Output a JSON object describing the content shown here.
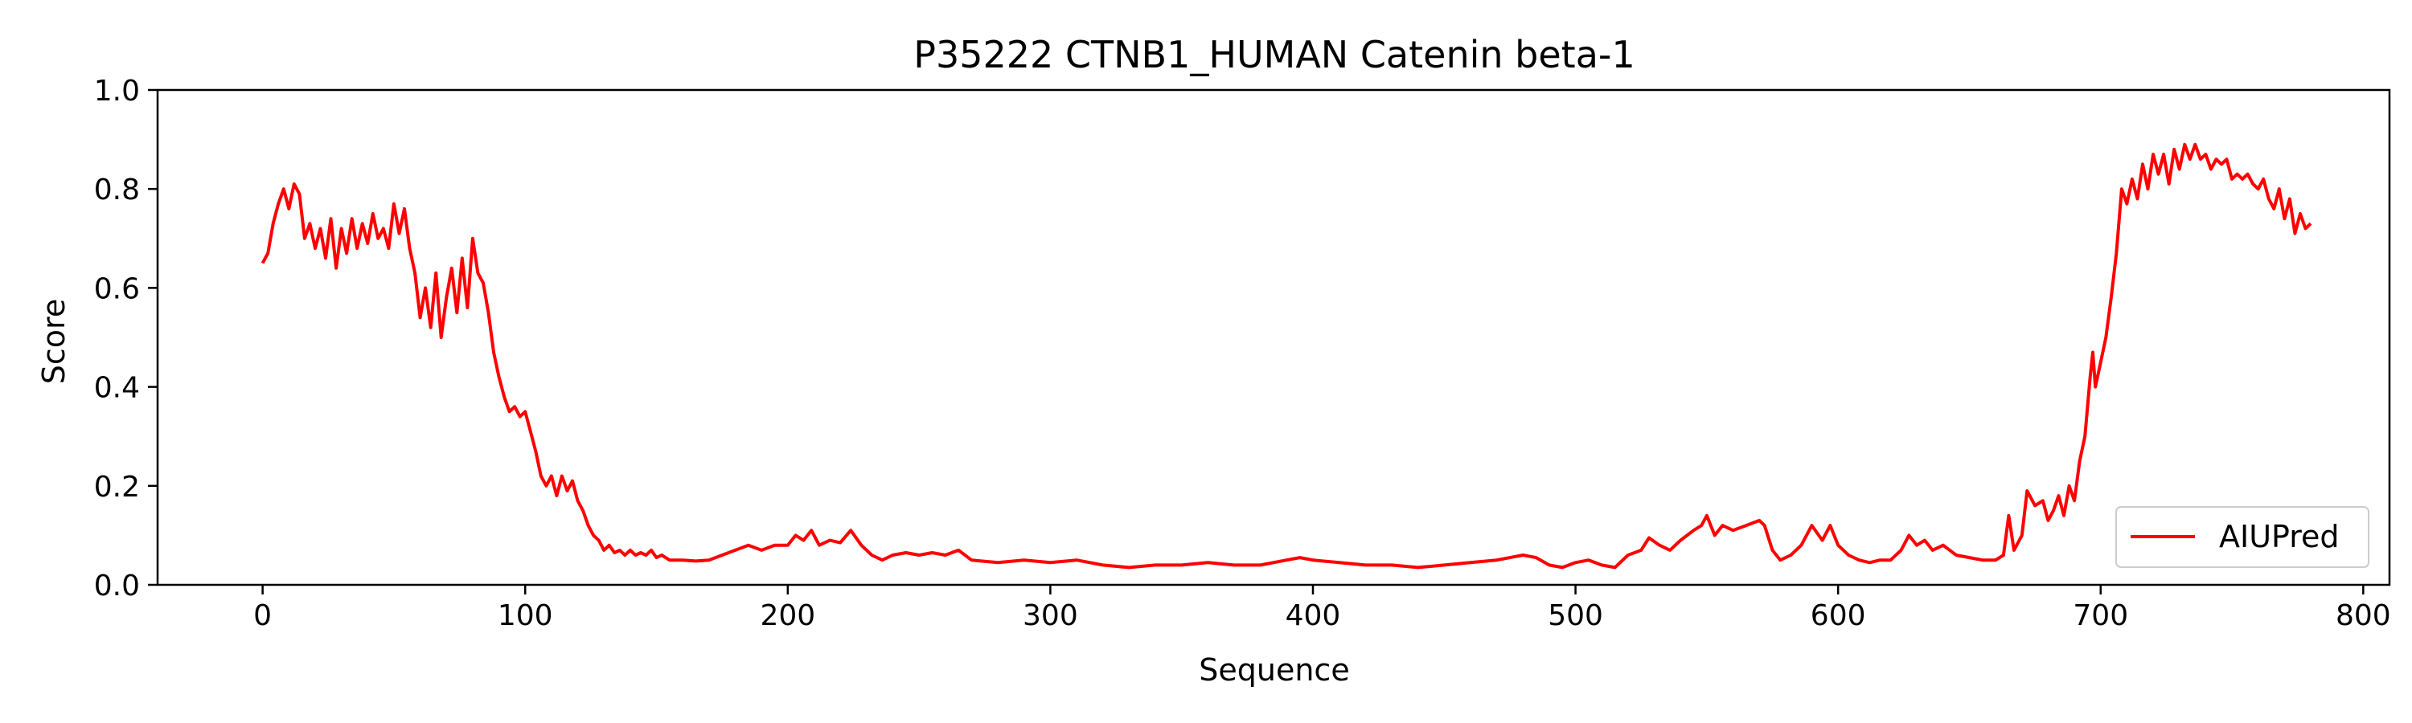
{
  "chart_data": {
    "type": "line",
    "title": "P35222 CTNB1_HUMAN Catenin beta-1",
    "xlabel": "Sequence",
    "ylabel": "Score",
    "xlim": [
      -40,
      810
    ],
    "ylim": [
      0.0,
      1.0
    ],
    "xticks": [
      0,
      100,
      200,
      300,
      400,
      500,
      600,
      700,
      800
    ],
    "yticks": [
      0.0,
      0.2,
      0.4,
      0.6,
      0.8,
      1.0
    ],
    "xtick_labels": [
      "0",
      "100",
      "200",
      "300",
      "400",
      "500",
      "600",
      "700",
      "800"
    ],
    "ytick_labels": [
      "0.0",
      "0.2",
      "0.4",
      "0.6",
      "0.8",
      "1.0"
    ],
    "grid": false,
    "legend_position": "lower-right",
    "series": [
      {
        "name": "AIUPred",
        "color": "#ff0000",
        "points": [
          [
            0,
            0.65
          ],
          [
            2,
            0.67
          ],
          [
            4,
            0.73
          ],
          [
            6,
            0.77
          ],
          [
            8,
            0.8
          ],
          [
            10,
            0.76
          ],
          [
            12,
            0.81
          ],
          [
            14,
            0.79
          ],
          [
            16,
            0.7
          ],
          [
            18,
            0.73
          ],
          [
            20,
            0.68
          ],
          [
            22,
            0.72
          ],
          [
            24,
            0.66
          ],
          [
            26,
            0.74
          ],
          [
            28,
            0.64
          ],
          [
            30,
            0.72
          ],
          [
            32,
            0.67
          ],
          [
            34,
            0.74
          ],
          [
            36,
            0.68
          ],
          [
            38,
            0.73
          ],
          [
            40,
            0.69
          ],
          [
            42,
            0.75
          ],
          [
            44,
            0.7
          ],
          [
            46,
            0.72
          ],
          [
            48,
            0.68
          ],
          [
            50,
            0.77
          ],
          [
            52,
            0.71
          ],
          [
            54,
            0.76
          ],
          [
            56,
            0.68
          ],
          [
            58,
            0.63
          ],
          [
            60,
            0.54
          ],
          [
            62,
            0.6
          ],
          [
            64,
            0.52
          ],
          [
            66,
            0.63
          ],
          [
            68,
            0.5
          ],
          [
            70,
            0.58
          ],
          [
            72,
            0.64
          ],
          [
            74,
            0.55
          ],
          [
            76,
            0.66
          ],
          [
            78,
            0.56
          ],
          [
            80,
            0.7
          ],
          [
            82,
            0.63
          ],
          [
            84,
            0.61
          ],
          [
            86,
            0.55
          ],
          [
            88,
            0.47
          ],
          [
            90,
            0.42
          ],
          [
            92,
            0.38
          ],
          [
            94,
            0.35
          ],
          [
            96,
            0.36
          ],
          [
            98,
            0.34
          ],
          [
            100,
            0.35
          ],
          [
            102,
            0.31
          ],
          [
            104,
            0.27
          ],
          [
            106,
            0.22
          ],
          [
            108,
            0.2
          ],
          [
            110,
            0.22
          ],
          [
            112,
            0.18
          ],
          [
            114,
            0.22
          ],
          [
            116,
            0.19
          ],
          [
            118,
            0.21
          ],
          [
            120,
            0.17
          ],
          [
            122,
            0.15
          ],
          [
            124,
            0.12
          ],
          [
            126,
            0.1
          ],
          [
            128,
            0.09
          ],
          [
            130,
            0.07
          ],
          [
            132,
            0.08
          ],
          [
            134,
            0.065
          ],
          [
            136,
            0.07
          ],
          [
            138,
            0.06
          ],
          [
            140,
            0.07
          ],
          [
            142,
            0.06
          ],
          [
            144,
            0.065
          ],
          [
            146,
            0.06
          ],
          [
            148,
            0.07
          ],
          [
            150,
            0.055
          ],
          [
            152,
            0.06
          ],
          [
            155,
            0.05
          ],
          [
            160,
            0.05
          ],
          [
            165,
            0.048
          ],
          [
            170,
            0.05
          ],
          [
            175,
            0.06
          ],
          [
            180,
            0.07
          ],
          [
            185,
            0.08
          ],
          [
            190,
            0.07
          ],
          [
            195,
            0.08
          ],
          [
            200,
            0.08
          ],
          [
            203,
            0.1
          ],
          [
            206,
            0.09
          ],
          [
            209,
            0.11
          ],
          [
            212,
            0.08
          ],
          [
            216,
            0.09
          ],
          [
            220,
            0.085
          ],
          [
            224,
            0.11
          ],
          [
            228,
            0.08
          ],
          [
            232,
            0.06
          ],
          [
            236,
            0.05
          ],
          [
            240,
            0.06
          ],
          [
            245,
            0.065
          ],
          [
            250,
            0.06
          ],
          [
            255,
            0.065
          ],
          [
            260,
            0.06
          ],
          [
            265,
            0.07
          ],
          [
            270,
            0.05
          ],
          [
            280,
            0.045
          ],
          [
            290,
            0.05
          ],
          [
            300,
            0.045
          ],
          [
            310,
            0.05
          ],
          [
            320,
            0.04
          ],
          [
            330,
            0.035
          ],
          [
            340,
            0.04
          ],
          [
            350,
            0.04
          ],
          [
            360,
            0.045
          ],
          [
            370,
            0.04
          ],
          [
            380,
            0.04
          ],
          [
            390,
            0.05
          ],
          [
            395,
            0.055
          ],
          [
            400,
            0.05
          ],
          [
            410,
            0.045
          ],
          [
            420,
            0.04
          ],
          [
            430,
            0.04
          ],
          [
            440,
            0.035
          ],
          [
            450,
            0.04
          ],
          [
            460,
            0.045
          ],
          [
            470,
            0.05
          ],
          [
            480,
            0.06
          ],
          [
            485,
            0.055
          ],
          [
            490,
            0.04
          ],
          [
            495,
            0.035
          ],
          [
            500,
            0.045
          ],
          [
            505,
            0.05
          ],
          [
            510,
            0.04
          ],
          [
            515,
            0.035
          ],
          [
            520,
            0.06
          ],
          [
            525,
            0.07
          ],
          [
            528,
            0.095
          ],
          [
            532,
            0.08
          ],
          [
            536,
            0.07
          ],
          [
            540,
            0.09
          ],
          [
            545,
            0.11
          ],
          [
            548,
            0.12
          ],
          [
            550,
            0.14
          ],
          [
            553,
            0.1
          ],
          [
            556,
            0.12
          ],
          [
            560,
            0.11
          ],
          [
            565,
            0.12
          ],
          [
            570,
            0.13
          ],
          [
            572,
            0.12
          ],
          [
            575,
            0.07
          ],
          [
            578,
            0.05
          ],
          [
            582,
            0.06
          ],
          [
            586,
            0.08
          ],
          [
            590,
            0.12
          ],
          [
            594,
            0.09
          ],
          [
            597,
            0.12
          ],
          [
            600,
            0.08
          ],
          [
            604,
            0.06
          ],
          [
            608,
            0.05
          ],
          [
            612,
            0.045
          ],
          [
            616,
            0.05
          ],
          [
            620,
            0.05
          ],
          [
            624,
            0.07
          ],
          [
            627,
            0.1
          ],
          [
            630,
            0.08
          ],
          [
            633,
            0.09
          ],
          [
            636,
            0.07
          ],
          [
            640,
            0.08
          ],
          [
            645,
            0.06
          ],
          [
            650,
            0.055
          ],
          [
            655,
            0.05
          ],
          [
            660,
            0.05
          ],
          [
            663,
            0.06
          ],
          [
            665,
            0.14
          ],
          [
            667,
            0.07
          ],
          [
            670,
            0.1
          ],
          [
            672,
            0.19
          ],
          [
            675,
            0.16
          ],
          [
            678,
            0.17
          ],
          [
            680,
            0.13
          ],
          [
            682,
            0.15
          ],
          [
            684,
            0.18
          ],
          [
            686,
            0.14
          ],
          [
            688,
            0.2
          ],
          [
            690,
            0.17
          ],
          [
            692,
            0.25
          ],
          [
            694,
            0.3
          ],
          [
            696,
            0.42
          ],
          [
            697,
            0.47
          ],
          [
            698,
            0.4
          ],
          [
            700,
            0.45
          ],
          [
            702,
            0.5
          ],
          [
            704,
            0.58
          ],
          [
            706,
            0.67
          ],
          [
            708,
            0.8
          ],
          [
            710,
            0.77
          ],
          [
            712,
            0.82
          ],
          [
            714,
            0.78
          ],
          [
            716,
            0.85
          ],
          [
            718,
            0.8
          ],
          [
            720,
            0.87
          ],
          [
            722,
            0.83
          ],
          [
            724,
            0.87
          ],
          [
            726,
            0.81
          ],
          [
            728,
            0.88
          ],
          [
            730,
            0.84
          ],
          [
            732,
            0.89
          ],
          [
            734,
            0.86
          ],
          [
            736,
            0.89
          ],
          [
            738,
            0.86
          ],
          [
            740,
            0.87
          ],
          [
            742,
            0.84
          ],
          [
            744,
            0.86
          ],
          [
            746,
            0.85
          ],
          [
            748,
            0.86
          ],
          [
            750,
            0.82
          ],
          [
            752,
            0.83
          ],
          [
            754,
            0.82
          ],
          [
            756,
            0.83
          ],
          [
            758,
            0.81
          ],
          [
            760,
            0.8
          ],
          [
            762,
            0.82
          ],
          [
            764,
            0.78
          ],
          [
            766,
            0.76
          ],
          [
            768,
            0.8
          ],
          [
            770,
            0.74
          ],
          [
            772,
            0.78
          ],
          [
            774,
            0.71
          ],
          [
            776,
            0.75
          ],
          [
            778,
            0.72
          ],
          [
            780,
            0.73
          ]
        ]
      }
    ]
  }
}
